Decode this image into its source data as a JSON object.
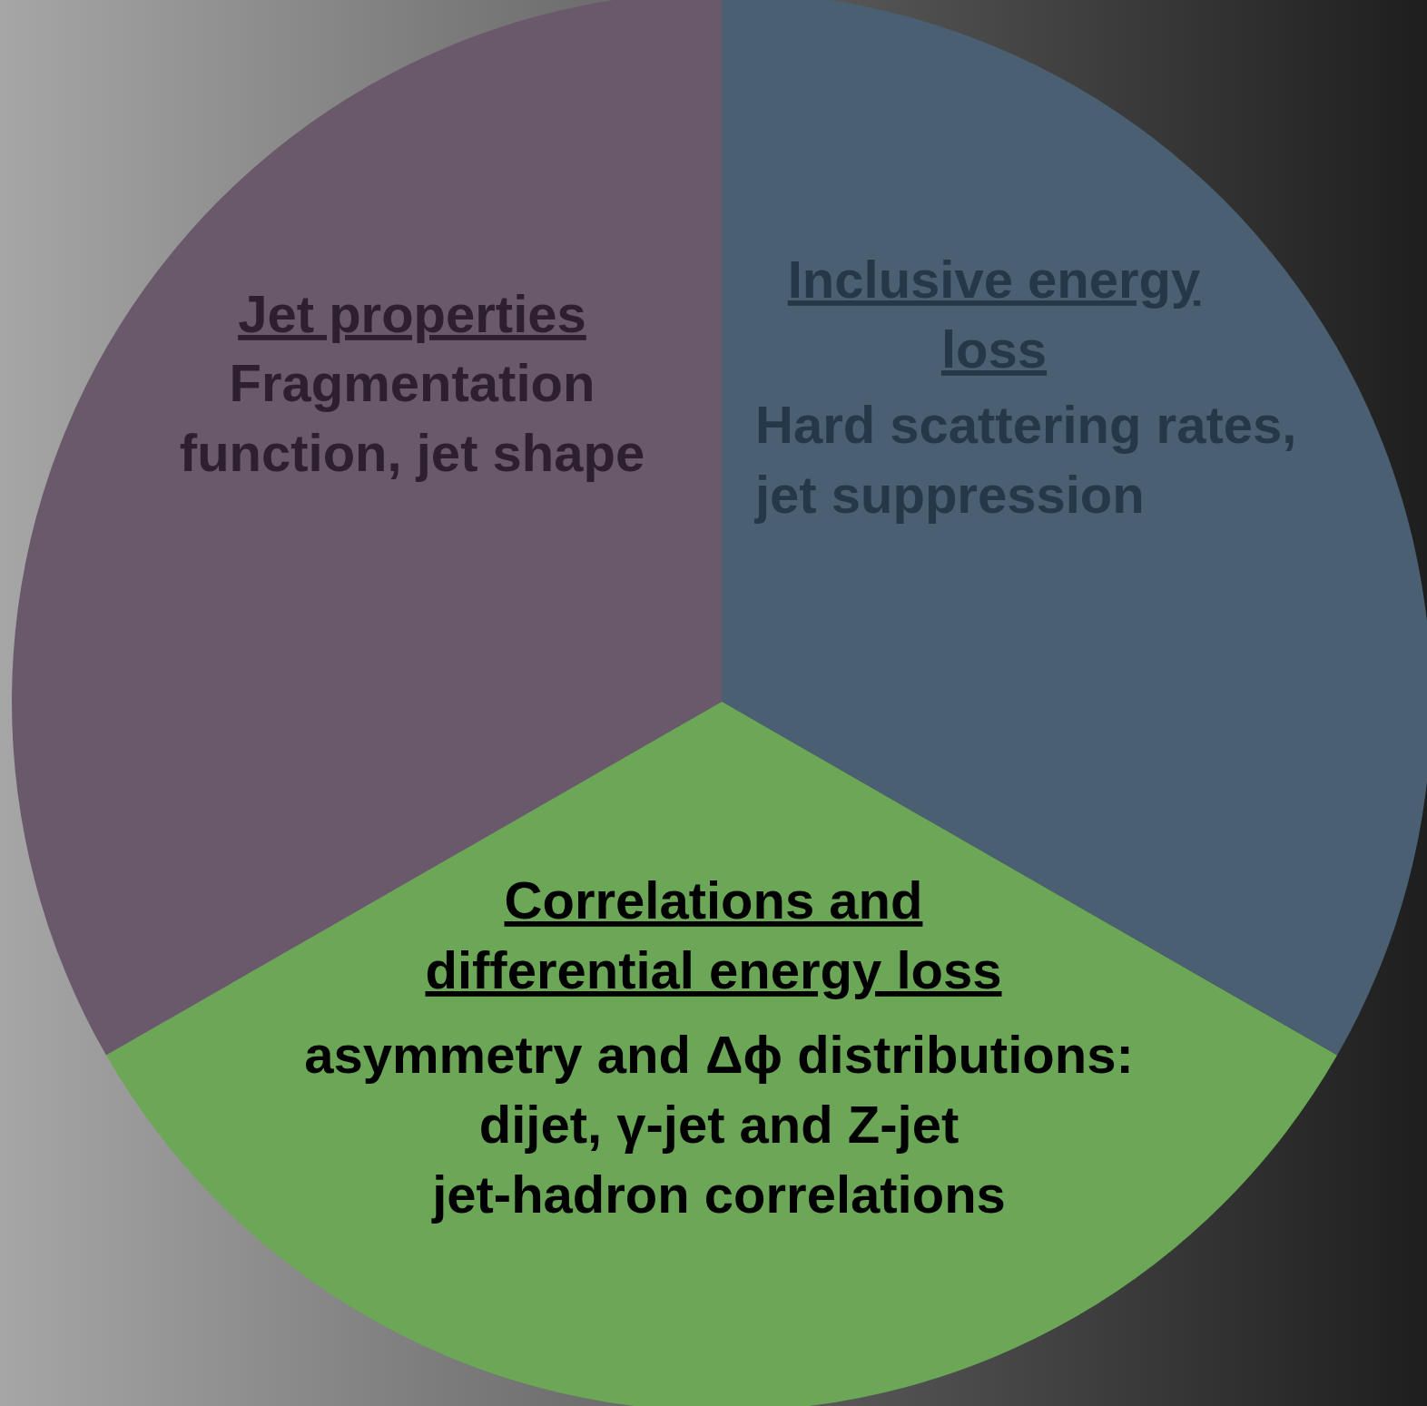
{
  "chart_data": {
    "type": "pie",
    "categories": [
      "Inclusive energy\nloss",
      "Correlations  and\ndifferential energy loss",
      "Jet properties"
    ],
    "values": [
      33.3,
      33.4,
      33.3
    ],
    "colors": [
      "#4a6072",
      "#6ca757",
      "#6a586b"
    ],
    "annotations": [
      "Hard scattering rates,\njet suppression",
      "asymmetry and Δϕ distributions:\ndijet, γ-jet and Z-jet\njet-hadron correlations",
      "Fragmentation\nfunction, jet shape"
    ]
  }
}
